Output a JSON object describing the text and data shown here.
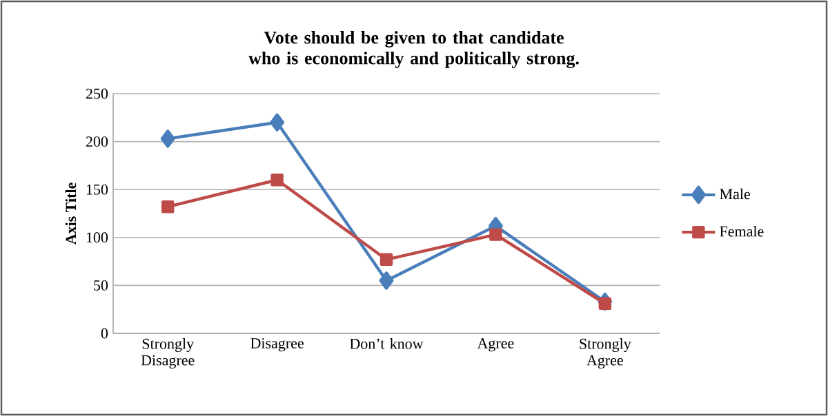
{
  "chart_data": {
    "type": "line",
    "title": "Vote should be given to that candidate who is economically and politically strong.",
    "ylabel": "Axis Title",
    "categories": [
      "Strongly Disagree",
      "Disagree",
      "Don’t know",
      "Agree",
      "Strongly Agree"
    ],
    "series": [
      {
        "name": "Male",
        "color": "#4a7ebb",
        "marker": "diamond",
        "values": [
          203,
          220,
          55,
          112,
          33
        ]
      },
      {
        "name": "Female",
        "color": "#be4b48",
        "marker": "square",
        "values": [
          132,
          160,
          77,
          103,
          31
        ]
      }
    ],
    "ylim": [
      0,
      250
    ],
    "yticks": [
      0,
      50,
      100,
      150,
      200,
      250
    ],
    "grid": "y",
    "legend": "right"
  }
}
